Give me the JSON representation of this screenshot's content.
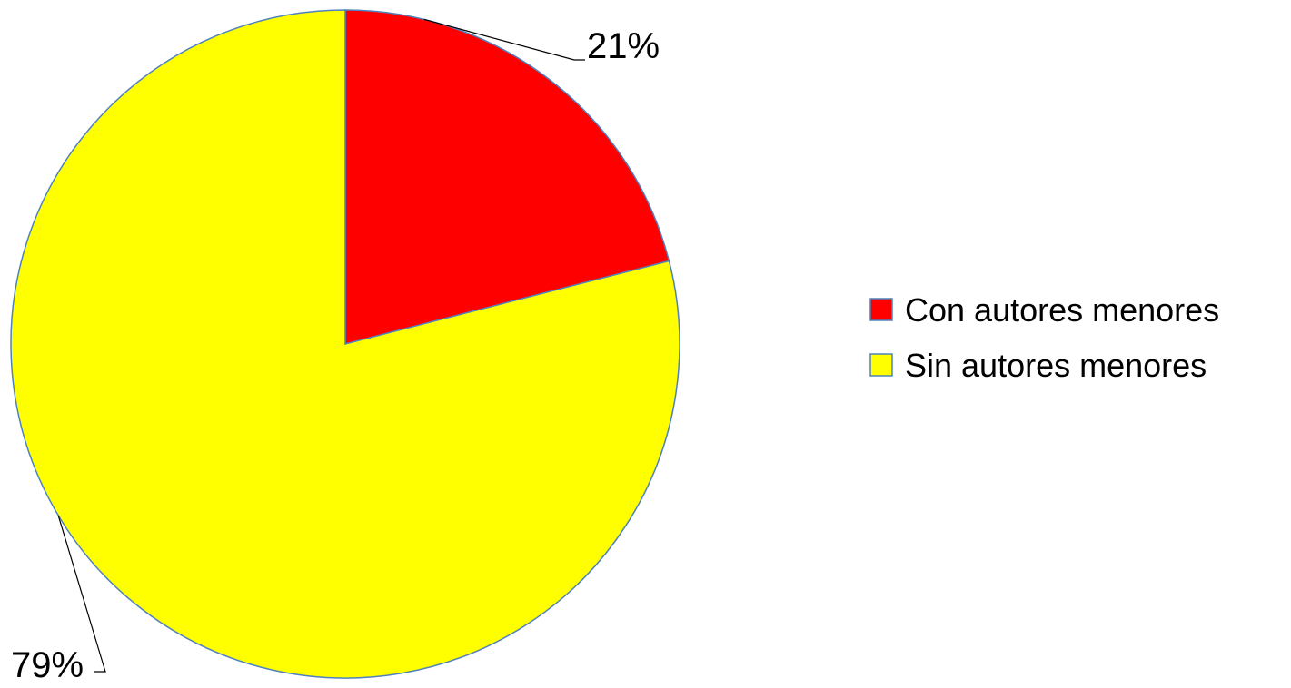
{
  "chart_data": {
    "type": "pie",
    "categories": [
      "Con autores menores",
      "Sin autores menores"
    ],
    "values": [
      21,
      79
    ],
    "data_labels": [
      "21%",
      "79%"
    ],
    "colors": [
      "#ff0000",
      "#ffff00"
    ],
    "border_color": "#4f81bd",
    "start_angle_deg": 0,
    "direction": "clockwise",
    "legend": {
      "placement": "right",
      "entries": [
        "Con autores menores",
        "Sin autores menores"
      ]
    },
    "title": ""
  }
}
